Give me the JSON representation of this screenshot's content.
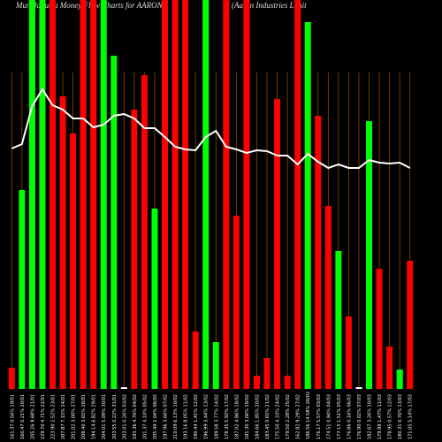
{
  "chart_data": {
    "type": "bar",
    "title": "MunafaSutra  Money Flow  Charts for AARON",
    "subtitle": "(Aaron  Industries Limit",
    "categories": [
      "161.37 0.56% 19/01",
      "160.47 0.21% 20/01",
      "205.26 9.68% 21/01",
      "229.70 4.71% 22/01",
      "223.90 2.52% 23/01",
      "207.87 7.15% 24/01",
      "201.02 3.00% 27/01",
      "208.40 3.65% 28/01",
      "194.14 6.82% 29/01",
      "204.01 5.09% 30/01",
      "203.55 0.22% 31/01",
      "203.01 0.26% 03/02",
      "193.36 4.76% 04/02",
      "201.37 4.10% 05/02",
      "205.49 2.04% 06/02",
      "197.96 3.66% 07/02",
      "210.09 6.13% 10/02",
      "193.16 8.05% 11/02",
      "190.44 1.41% 12/02",
      "196.99 3.44% 13/02",
      "189.58 3.77% 14/02",
      "178.35 5.92% 17/02",
      "187.02 4.86% 18/02",
      "181.30 3.06% 19/02",
      "184.66 1.85% 20/02",
      "183.45 0.65% 21/02",
      "175.50 4.33% 24/02",
      "179.50 2.28% 25/02",
      "162.82 9.29% 27/02",
      "186.56 14.58% 28/02",
      "176.17 5.57% 03/03",
      "174.51 0.94% 04/03",
      "177.15 1.51% 05/03",
      "176.86 0.16% 06/03",
      "176.90 0.02% 07/03",
      "182.67 3.26% 10/03",
      "179.98 1.47% 11/03",
      "178.95 0.57% 12/03",
      "180.31 0.76% 13/03",
      "171.05 5.14% 17/03"
    ],
    "series": [
      {
        "name": "Money flow",
        "values": [
          24,
          225,
          440,
          440,
          440,
          331,
          289,
          440,
          440,
          440,
          377,
          2,
          316,
          355,
          204,
          440,
          440,
          440,
          65,
          440,
          53,
          440,
          196,
          440,
          15,
          35,
          328,
          15,
          440,
          415,
          309,
          207,
          156,
          82,
          2,
          303,
          136,
          48,
          22,
          145
        ],
        "colors": [
          "#f00",
          "#0f0",
          "#0f0",
          "#0f0",
          "#f00",
          "#f00",
          "#f00",
          "#f00",
          "#f00",
          "#0f0",
          "#0f0",
          "#fff",
          "#f00",
          "#f00",
          "#0f0",
          "#f00",
          "#f00",
          "#f00",
          "#f00",
          "#0f0",
          "#0f0",
          "#f00",
          "#f00",
          "#f00",
          "#f00",
          "#f00",
          "#f00",
          "#f00",
          "#f00",
          "#0f0",
          "#f00",
          "#f00",
          "#0f0",
          "#f00",
          "#fff",
          "#0f0",
          "#f00",
          "#f00",
          "#0f0",
          "#f00"
        ]
      },
      {
        "name": "Price",
        "type": "line",
        "color": "#fff",
        "values": [
          272,
          277,
          320,
          339,
          321,
          316,
          306,
          306,
          296,
          299,
          309,
          311,
          306,
          295,
          295,
          285,
          274,
          271,
          270,
          285,
          292,
          274,
          271,
          267,
          270,
          269,
          264,
          264,
          254,
          266,
          257,
          250,
          254,
          250,
          250,
          259,
          256,
          255,
          256,
          250
        ]
      }
    ],
    "ylim": [
      0,
      440
    ],
    "grid": true,
    "grid_color": "#8a4a00"
  }
}
